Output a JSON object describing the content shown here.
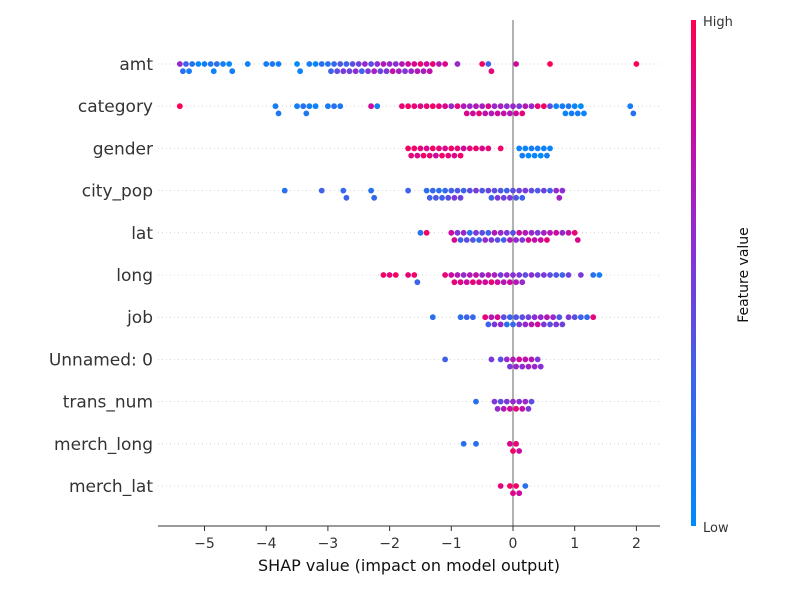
{
  "chart_data": {
    "type": "scatter",
    "subtype": "shap-beeswarm",
    "xlabel": "SHAP value (impact on model output)",
    "xlim": [
      -5.8,
      2.4
    ],
    "xticks": [
      -5,
      -4,
      -3,
      -2,
      -1,
      0,
      1,
      2
    ],
    "xtick_labels": [
      "−5",
      "−4",
      "−3",
      "−2",
      "−1",
      "0",
      "1",
      "2"
    ],
    "features": [
      "amt",
      "category",
      "gender",
      "city_pop",
      "lat",
      "long",
      "job",
      "Unnamed: 0",
      "trans_num",
      "merch_long",
      "merch_lat"
    ],
    "colorbar": {
      "label": "Feature value",
      "high": "High",
      "low": "Low",
      "low_color": "#008bfb",
      "high_color": "#ff0052"
    },
    "zero_line": true,
    "row_grid": "dotted",
    "points": {
      "amt": [
        [
          -5.4,
          0.6
        ],
        [
          -5.35,
          0.2
        ],
        [
          -5.3,
          0.3
        ],
        [
          -5.25,
          0.1
        ],
        [
          -5.2,
          0.2
        ],
        [
          -5.1,
          0.0
        ],
        [
          -5.0,
          0.1
        ],
        [
          -4.9,
          0.15
        ],
        [
          -4.85,
          0.05
        ],
        [
          -4.8,
          0.2
        ],
        [
          -4.7,
          0.1
        ],
        [
          -4.6,
          0.0
        ],
        [
          -4.55,
          0.1
        ],
        [
          -4.3,
          0.05
        ],
        [
          -4.0,
          0.1
        ],
        [
          -3.9,
          0.15
        ],
        [
          -3.8,
          0.1
        ],
        [
          -3.5,
          0.0
        ],
        [
          -3.45,
          0.05
        ],
        [
          -3.3,
          0.1
        ],
        [
          -3.2,
          0.05
        ],
        [
          -3.1,
          0.2
        ],
        [
          -3.0,
          0.15
        ],
        [
          -2.95,
          0.3
        ],
        [
          -2.9,
          0.25
        ],
        [
          -2.85,
          0.4
        ],
        [
          -2.8,
          0.35
        ],
        [
          -2.75,
          0.5
        ],
        [
          -2.7,
          0.3
        ],
        [
          -2.65,
          0.45
        ],
        [
          -2.6,
          0.4
        ],
        [
          -2.55,
          0.55
        ],
        [
          -2.5,
          0.45
        ],
        [
          -2.45,
          0.3
        ],
        [
          -2.4,
          0.6
        ],
        [
          -2.35,
          0.5
        ],
        [
          -2.3,
          0.4
        ],
        [
          -2.25,
          0.65
        ],
        [
          -2.2,
          0.55
        ],
        [
          -2.15,
          0.45
        ],
        [
          -2.1,
          0.7
        ],
        [
          -2.05,
          0.5
        ],
        [
          -2.0,
          0.6
        ],
        [
          -1.95,
          0.75
        ],
        [
          -1.9,
          0.55
        ],
        [
          -1.85,
          0.65
        ],
        [
          -1.8,
          0.7
        ],
        [
          -1.75,
          0.5
        ],
        [
          -1.7,
          0.8
        ],
        [
          -1.65,
          0.6
        ],
        [
          -1.6,
          0.85
        ],
        [
          -1.55,
          0.7
        ],
        [
          -1.5,
          0.9
        ],
        [
          -1.45,
          0.65
        ],
        [
          -1.4,
          0.8
        ],
        [
          -1.35,
          0.75
        ],
        [
          -1.3,
          0.9
        ],
        [
          -1.2,
          0.7
        ],
        [
          -1.1,
          0.85
        ],
        [
          -0.9,
          0.6
        ],
        [
          -0.5,
          0.95
        ],
        [
          -0.4,
          0.3
        ],
        [
          -0.35,
          0.9
        ],
        [
          0.05,
          0.8
        ],
        [
          0.6,
          1.0
        ],
        [
          2.0,
          1.0
        ]
      ],
      "category": [
        [
          -5.4,
          1.0
        ],
        [
          -3.85,
          0.1
        ],
        [
          -3.8,
          0.15
        ],
        [
          -3.5,
          0.1
        ],
        [
          -3.4,
          0.2
        ],
        [
          -3.35,
          0.15
        ],
        [
          -3.3,
          0.1
        ],
        [
          -3.2,
          0.05
        ],
        [
          -3.0,
          0.1
        ],
        [
          -2.9,
          0.2
        ],
        [
          -2.8,
          0.15
        ],
        [
          -2.3,
          0.8
        ],
        [
          -2.2,
          0.1
        ],
        [
          -1.8,
          0.9
        ],
        [
          -1.7,
          0.95
        ],
        [
          -1.6,
          0.9
        ],
        [
          -1.5,
          0.85
        ],
        [
          -1.4,
          0.9
        ],
        [
          -1.3,
          0.95
        ],
        [
          -1.2,
          0.9
        ],
        [
          -1.1,
          0.85
        ],
        [
          -1.0,
          0.6
        ],
        [
          -0.9,
          0.9
        ],
        [
          -0.8,
          0.7
        ],
        [
          -0.75,
          0.85
        ],
        [
          -0.7,
          0.6
        ],
        [
          -0.65,
          0.8
        ],
        [
          -0.6,
          0.7
        ],
        [
          -0.55,
          0.9
        ],
        [
          -0.5,
          0.65
        ],
        [
          -0.45,
          0.75
        ],
        [
          -0.4,
          0.85
        ],
        [
          -0.35,
          0.7
        ],
        [
          -0.3,
          0.6
        ],
        [
          -0.25,
          0.8
        ],
        [
          -0.2,
          0.65
        ],
        [
          -0.15,
          0.75
        ],
        [
          -0.1,
          0.55
        ],
        [
          -0.05,
          0.7
        ],
        [
          0.0,
          0.6
        ],
        [
          0.05,
          0.8
        ],
        [
          0.1,
          0.5
        ],
        [
          0.15,
          0.9
        ],
        [
          0.2,
          0.7
        ],
        [
          0.3,
          0.6
        ],
        [
          0.4,
          0.9
        ],
        [
          0.5,
          0.95
        ],
        [
          0.6,
          0.4
        ],
        [
          0.7,
          0.05
        ],
        [
          0.8,
          0.1
        ],
        [
          0.85,
          0.05
        ],
        [
          0.9,
          0.15
        ],
        [
          0.95,
          0.1
        ],
        [
          1.0,
          0.05
        ],
        [
          1.05,
          0.1
        ],
        [
          1.1,
          0.0
        ],
        [
          1.15,
          0.05
        ],
        [
          1.9,
          0.1
        ],
        [
          1.95,
          0.2
        ]
      ],
      "gender": [
        [
          -1.7,
          0.95
        ],
        [
          -1.65,
          0.9
        ],
        [
          -1.6,
          0.95
        ],
        [
          -1.55,
          0.85
        ],
        [
          -1.5,
          0.9
        ],
        [
          -1.45,
          0.95
        ],
        [
          -1.4,
          0.85
        ],
        [
          -1.35,
          0.9
        ],
        [
          -1.3,
          0.95
        ],
        [
          -1.25,
          0.8
        ],
        [
          -1.2,
          0.9
        ],
        [
          -1.15,
          0.95
        ],
        [
          -1.1,
          0.85
        ],
        [
          -1.05,
          0.9
        ],
        [
          -1.0,
          0.95
        ],
        [
          -0.95,
          0.85
        ],
        [
          -0.9,
          0.9
        ],
        [
          -0.85,
          0.95
        ],
        [
          -0.8,
          0.8
        ],
        [
          -0.7,
          0.9
        ],
        [
          -0.6,
          0.95
        ],
        [
          -0.5,
          0.85
        ],
        [
          -0.4,
          0.9
        ],
        [
          -0.2,
          0.95
        ],
        [
          0.1,
          0.05
        ],
        [
          0.15,
          0.1
        ],
        [
          0.2,
          0.05
        ],
        [
          0.25,
          0.0
        ],
        [
          0.3,
          0.1
        ],
        [
          0.35,
          0.05
        ],
        [
          0.4,
          0.1
        ],
        [
          0.45,
          0.0
        ],
        [
          0.5,
          0.05
        ],
        [
          0.55,
          0.1
        ],
        [
          0.6,
          0.05
        ]
      ],
      "city_pop": [
        [
          -3.7,
          0.2
        ],
        [
          -3.1,
          0.3
        ],
        [
          -2.75,
          0.25
        ],
        [
          -2.7,
          0.3
        ],
        [
          -2.3,
          0.2
        ],
        [
          -2.25,
          0.25
        ],
        [
          -1.7,
          0.3
        ],
        [
          -1.4,
          0.2
        ],
        [
          -1.35,
          0.3
        ],
        [
          -1.3,
          0.25
        ],
        [
          -1.25,
          0.35
        ],
        [
          -1.2,
          0.2
        ],
        [
          -1.15,
          0.3
        ],
        [
          -1.1,
          0.25
        ],
        [
          -1.05,
          0.4
        ],
        [
          -1.0,
          0.3
        ],
        [
          -0.95,
          0.5
        ],
        [
          -0.9,
          0.35
        ],
        [
          -0.85,
          0.45
        ],
        [
          -0.8,
          0.3
        ],
        [
          -0.7,
          0.4
        ],
        [
          -0.6,
          0.5
        ],
        [
          -0.5,
          0.35
        ],
        [
          -0.4,
          0.45
        ],
        [
          -0.35,
          0.3
        ],
        [
          -0.3,
          0.4
        ],
        [
          -0.25,
          0.5
        ],
        [
          -0.2,
          0.35
        ],
        [
          -0.15,
          0.45
        ],
        [
          -0.1,
          0.3
        ],
        [
          -0.05,
          0.5
        ],
        [
          0.0,
          0.4
        ],
        [
          0.05,
          0.35
        ],
        [
          0.1,
          0.45
        ],
        [
          0.15,
          0.3
        ],
        [
          0.2,
          0.5
        ],
        [
          0.3,
          0.4
        ],
        [
          0.4,
          0.35
        ],
        [
          0.5,
          0.45
        ],
        [
          0.6,
          0.3
        ],
        [
          0.7,
          0.6
        ],
        [
          0.75,
          0.65
        ],
        [
          0.8,
          0.55
        ]
      ],
      "lat": [
        [
          -1.5,
          0.2
        ],
        [
          -1.4,
          0.95
        ],
        [
          -1.0,
          0.8
        ],
        [
          -0.95,
          0.85
        ],
        [
          -0.9,
          0.5
        ],
        [
          -0.85,
          0.3
        ],
        [
          -0.8,
          0.6
        ],
        [
          -0.75,
          0.4
        ],
        [
          -0.7,
          0.2
        ],
        [
          -0.65,
          0.35
        ],
        [
          -0.6,
          0.5
        ],
        [
          -0.55,
          0.25
        ],
        [
          -0.5,
          0.4
        ],
        [
          -0.45,
          0.6
        ],
        [
          -0.4,
          0.3
        ],
        [
          -0.35,
          0.5
        ],
        [
          -0.3,
          0.7
        ],
        [
          -0.25,
          0.4
        ],
        [
          -0.2,
          0.6
        ],
        [
          -0.15,
          0.3
        ],
        [
          -0.1,
          0.5
        ],
        [
          -0.05,
          0.7
        ],
        [
          0.0,
          0.4
        ],
        [
          0.05,
          0.6
        ],
        [
          0.1,
          0.8
        ],
        [
          0.15,
          0.5
        ],
        [
          0.2,
          0.7
        ],
        [
          0.25,
          0.85
        ],
        [
          0.3,
          0.6
        ],
        [
          0.35,
          0.75
        ],
        [
          0.4,
          0.5
        ],
        [
          0.45,
          0.8
        ],
        [
          0.5,
          0.65
        ],
        [
          0.55,
          0.9
        ],
        [
          0.6,
          0.7
        ],
        [
          0.7,
          0.8
        ],
        [
          0.8,
          0.6
        ],
        [
          0.9,
          0.75
        ],
        [
          1.0,
          0.9
        ],
        [
          1.05,
          0.85
        ]
      ],
      "long": [
        [
          -2.1,
          0.95
        ],
        [
          -2.0,
          0.9
        ],
        [
          -1.9,
          0.95
        ],
        [
          -1.7,
          0.9
        ],
        [
          -1.6,
          0.95
        ],
        [
          -1.55,
          0.3
        ],
        [
          -1.1,
          0.9
        ],
        [
          -1.0,
          0.8
        ],
        [
          -0.95,
          0.9
        ],
        [
          -0.9,
          0.7
        ],
        [
          -0.85,
          0.85
        ],
        [
          -0.8,
          0.6
        ],
        [
          -0.75,
          0.8
        ],
        [
          -0.7,
          0.7
        ],
        [
          -0.65,
          0.9
        ],
        [
          -0.6,
          0.75
        ],
        [
          -0.55,
          0.85
        ],
        [
          -0.5,
          0.6
        ],
        [
          -0.45,
          0.8
        ],
        [
          -0.4,
          0.7
        ],
        [
          -0.35,
          0.9
        ],
        [
          -0.3,
          0.65
        ],
        [
          -0.25,
          0.8
        ],
        [
          -0.2,
          0.5
        ],
        [
          -0.15,
          0.7
        ],
        [
          -0.1,
          0.6
        ],
        [
          -0.05,
          0.8
        ],
        [
          0.0,
          0.55
        ],
        [
          0.05,
          0.7
        ],
        [
          0.1,
          0.5
        ],
        [
          0.15,
          0.6
        ],
        [
          0.2,
          0.4
        ],
        [
          0.3,
          0.55
        ],
        [
          0.4,
          0.45
        ],
        [
          0.5,
          0.5
        ],
        [
          0.6,
          0.4
        ],
        [
          0.7,
          0.35
        ],
        [
          0.8,
          0.3
        ],
        [
          0.9,
          0.45
        ],
        [
          1.1,
          0.5
        ],
        [
          1.3,
          0.2
        ],
        [
          1.4,
          0.1
        ]
      ],
      "job": [
        [
          -1.3,
          0.2
        ],
        [
          -0.85,
          0.2
        ],
        [
          -0.75,
          0.3
        ],
        [
          -0.65,
          0.25
        ],
        [
          -0.45,
          0.9
        ],
        [
          -0.4,
          0.3
        ],
        [
          -0.35,
          0.7
        ],
        [
          -0.3,
          0.5
        ],
        [
          -0.25,
          0.85
        ],
        [
          -0.2,
          0.6
        ],
        [
          -0.15,
          0.4
        ],
        [
          -0.1,
          0.2
        ],
        [
          -0.05,
          0.3
        ],
        [
          0.0,
          0.25
        ],
        [
          0.05,
          0.35
        ],
        [
          0.1,
          0.5
        ],
        [
          0.15,
          0.4
        ],
        [
          0.2,
          0.6
        ],
        [
          0.25,
          0.45
        ],
        [
          0.3,
          0.7
        ],
        [
          0.35,
          0.55
        ],
        [
          0.4,
          0.8
        ],
        [
          0.45,
          0.6
        ],
        [
          0.5,
          0.5
        ],
        [
          0.55,
          0.7
        ],
        [
          0.6,
          0.4
        ],
        [
          0.65,
          0.6
        ],
        [
          0.7,
          0.5
        ],
        [
          0.75,
          0.35
        ],
        [
          0.8,
          0.45
        ],
        [
          0.9,
          0.5
        ],
        [
          1.0,
          0.4
        ],
        [
          1.1,
          0.3
        ],
        [
          1.2,
          0.25
        ],
        [
          1.3,
          0.9
        ]
      ],
      "Unnamed: 0": [
        [
          -1.1,
          0.3
        ],
        [
          -0.35,
          0.5
        ],
        [
          -0.2,
          0.4
        ],
        [
          -0.1,
          0.6
        ],
        [
          -0.05,
          0.5
        ],
        [
          0.0,
          0.7
        ],
        [
          0.05,
          0.6
        ],
        [
          0.1,
          0.8
        ],
        [
          0.15,
          0.55
        ],
        [
          0.2,
          0.75
        ],
        [
          0.25,
          0.65
        ],
        [
          0.3,
          0.7
        ],
        [
          0.35,
          0.6
        ],
        [
          0.4,
          0.5
        ],
        [
          0.45,
          0.55
        ]
      ],
      "trans_num": [
        [
          -0.6,
          0.2
        ],
        [
          -0.3,
          0.5
        ],
        [
          -0.25,
          0.6
        ],
        [
          -0.2,
          0.4
        ],
        [
          -0.15,
          0.7
        ],
        [
          -0.1,
          0.5
        ],
        [
          -0.05,
          0.8
        ],
        [
          0.0,
          0.6
        ],
        [
          0.05,
          0.9
        ],
        [
          0.1,
          0.55
        ],
        [
          0.15,
          0.75
        ],
        [
          0.2,
          0.6
        ],
        [
          0.25,
          0.5
        ],
        [
          0.3,
          0.4
        ]
      ],
      "merch_long": [
        [
          -0.8,
          0.2
        ],
        [
          -0.6,
          0.2
        ],
        [
          -0.05,
          0.85
        ],
        [
          0.0,
          0.95
        ],
        [
          0.05,
          0.9
        ],
        [
          0.1,
          0.8
        ]
      ],
      "merch_lat": [
        [
          -0.2,
          0.9
        ],
        [
          -0.05,
          0.95
        ],
        [
          0.0,
          0.85
        ],
        [
          0.05,
          0.95
        ],
        [
          0.1,
          0.8
        ],
        [
          0.2,
          0.2
        ]
      ]
    }
  }
}
